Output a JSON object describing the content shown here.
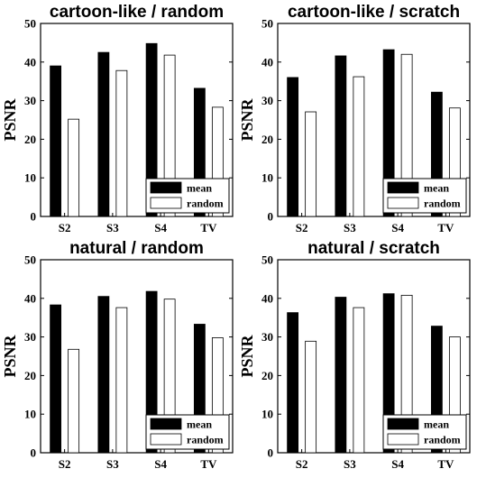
{
  "chart_data": [
    {
      "type": "bar",
      "title": "cartoon-like / random",
      "ylabel": "PSNR",
      "xlabel": "",
      "ylim": [
        0,
        50
      ],
      "yticks": [
        0,
        10,
        20,
        30,
        40,
        50
      ],
      "categories": [
        "S2",
        "S3",
        "S4",
        "TV"
      ],
      "series": [
        {
          "name": "mean",
          "color": "#000000",
          "values": [
            39.0,
            42.5,
            44.8,
            33.2
          ]
        },
        {
          "name": "random",
          "color": "#ffffff",
          "values": [
            25.2,
            37.8,
            41.8,
            28.3
          ]
        }
      ],
      "legend": "bottom-right",
      "grid": false
    },
    {
      "type": "bar",
      "title": "cartoon-like / scratch",
      "ylabel": "PSNR",
      "xlabel": "",
      "ylim": [
        0,
        50
      ],
      "yticks": [
        0,
        10,
        20,
        30,
        40,
        50
      ],
      "categories": [
        "S2",
        "S3",
        "S4",
        "TV"
      ],
      "series": [
        {
          "name": "mean",
          "color": "#000000",
          "values": [
            36.0,
            41.6,
            43.2,
            32.2
          ]
        },
        {
          "name": "random",
          "color": "#ffffff",
          "values": [
            27.1,
            36.2,
            42.0,
            28.1
          ]
        }
      ],
      "legend": "bottom-right",
      "grid": false
    },
    {
      "type": "bar",
      "title": "natural / random",
      "ylabel": "PSNR",
      "xlabel": "",
      "ylim": [
        0,
        50
      ],
      "yticks": [
        0,
        10,
        20,
        30,
        40,
        50
      ],
      "categories": [
        "S2",
        "S3",
        "S4",
        "TV"
      ],
      "series": [
        {
          "name": "mean",
          "color": "#000000",
          "values": [
            38.3,
            40.5,
            41.8,
            33.3
          ]
        },
        {
          "name": "random",
          "color": "#ffffff",
          "values": [
            26.8,
            37.6,
            39.8,
            29.8
          ]
        }
      ],
      "legend": "bottom-right",
      "grid": false
    },
    {
      "type": "bar",
      "title": "natural / scratch",
      "ylabel": "PSNR",
      "xlabel": "",
      "ylim": [
        0,
        50
      ],
      "yticks": [
        0,
        10,
        20,
        30,
        40,
        50
      ],
      "categories": [
        "S2",
        "S3",
        "S4",
        "TV"
      ],
      "series": [
        {
          "name": "mean",
          "color": "#000000",
          "values": [
            36.3,
            40.3,
            41.2,
            32.8
          ]
        },
        {
          "name": "random",
          "color": "#ffffff",
          "values": [
            28.9,
            37.6,
            40.8,
            30.0
          ]
        }
      ],
      "legend": "bottom-right",
      "grid": false
    }
  ]
}
